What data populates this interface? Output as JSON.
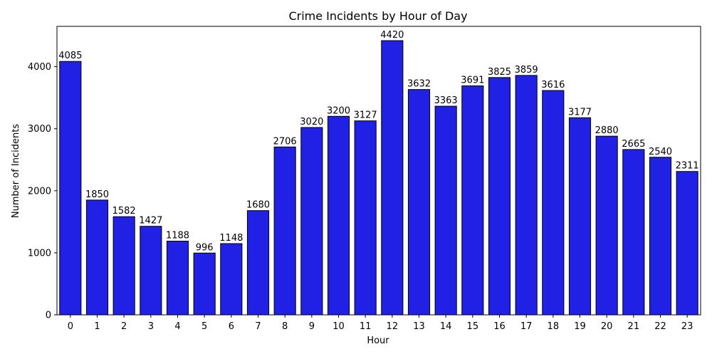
{
  "chart_data": {
    "type": "bar",
    "title": "Crime Incidents by Hour of Day",
    "xlabel": "Hour",
    "ylabel": "Number of Incidents",
    "categories": [
      "0",
      "1",
      "2",
      "3",
      "4",
      "5",
      "6",
      "7",
      "8",
      "9",
      "10",
      "11",
      "12",
      "13",
      "14",
      "15",
      "16",
      "17",
      "18",
      "19",
      "20",
      "21",
      "22",
      "23"
    ],
    "values": [
      4085,
      1850,
      1582,
      1427,
      1188,
      996,
      1148,
      1680,
      2706,
      3020,
      3200,
      3127,
      4420,
      3632,
      3363,
      3691,
      3825,
      3859,
      3616,
      3177,
      2880,
      2665,
      2540,
      2311
    ],
    "ylim": [
      0,
      4650
    ],
    "yticks": [
      "0",
      "1000",
      "2000",
      "3000",
      "4000"
    ],
    "grid": false,
    "legend": "none",
    "bar_color": "#2121e5",
    "bar_edge_color": "#000000"
  }
}
